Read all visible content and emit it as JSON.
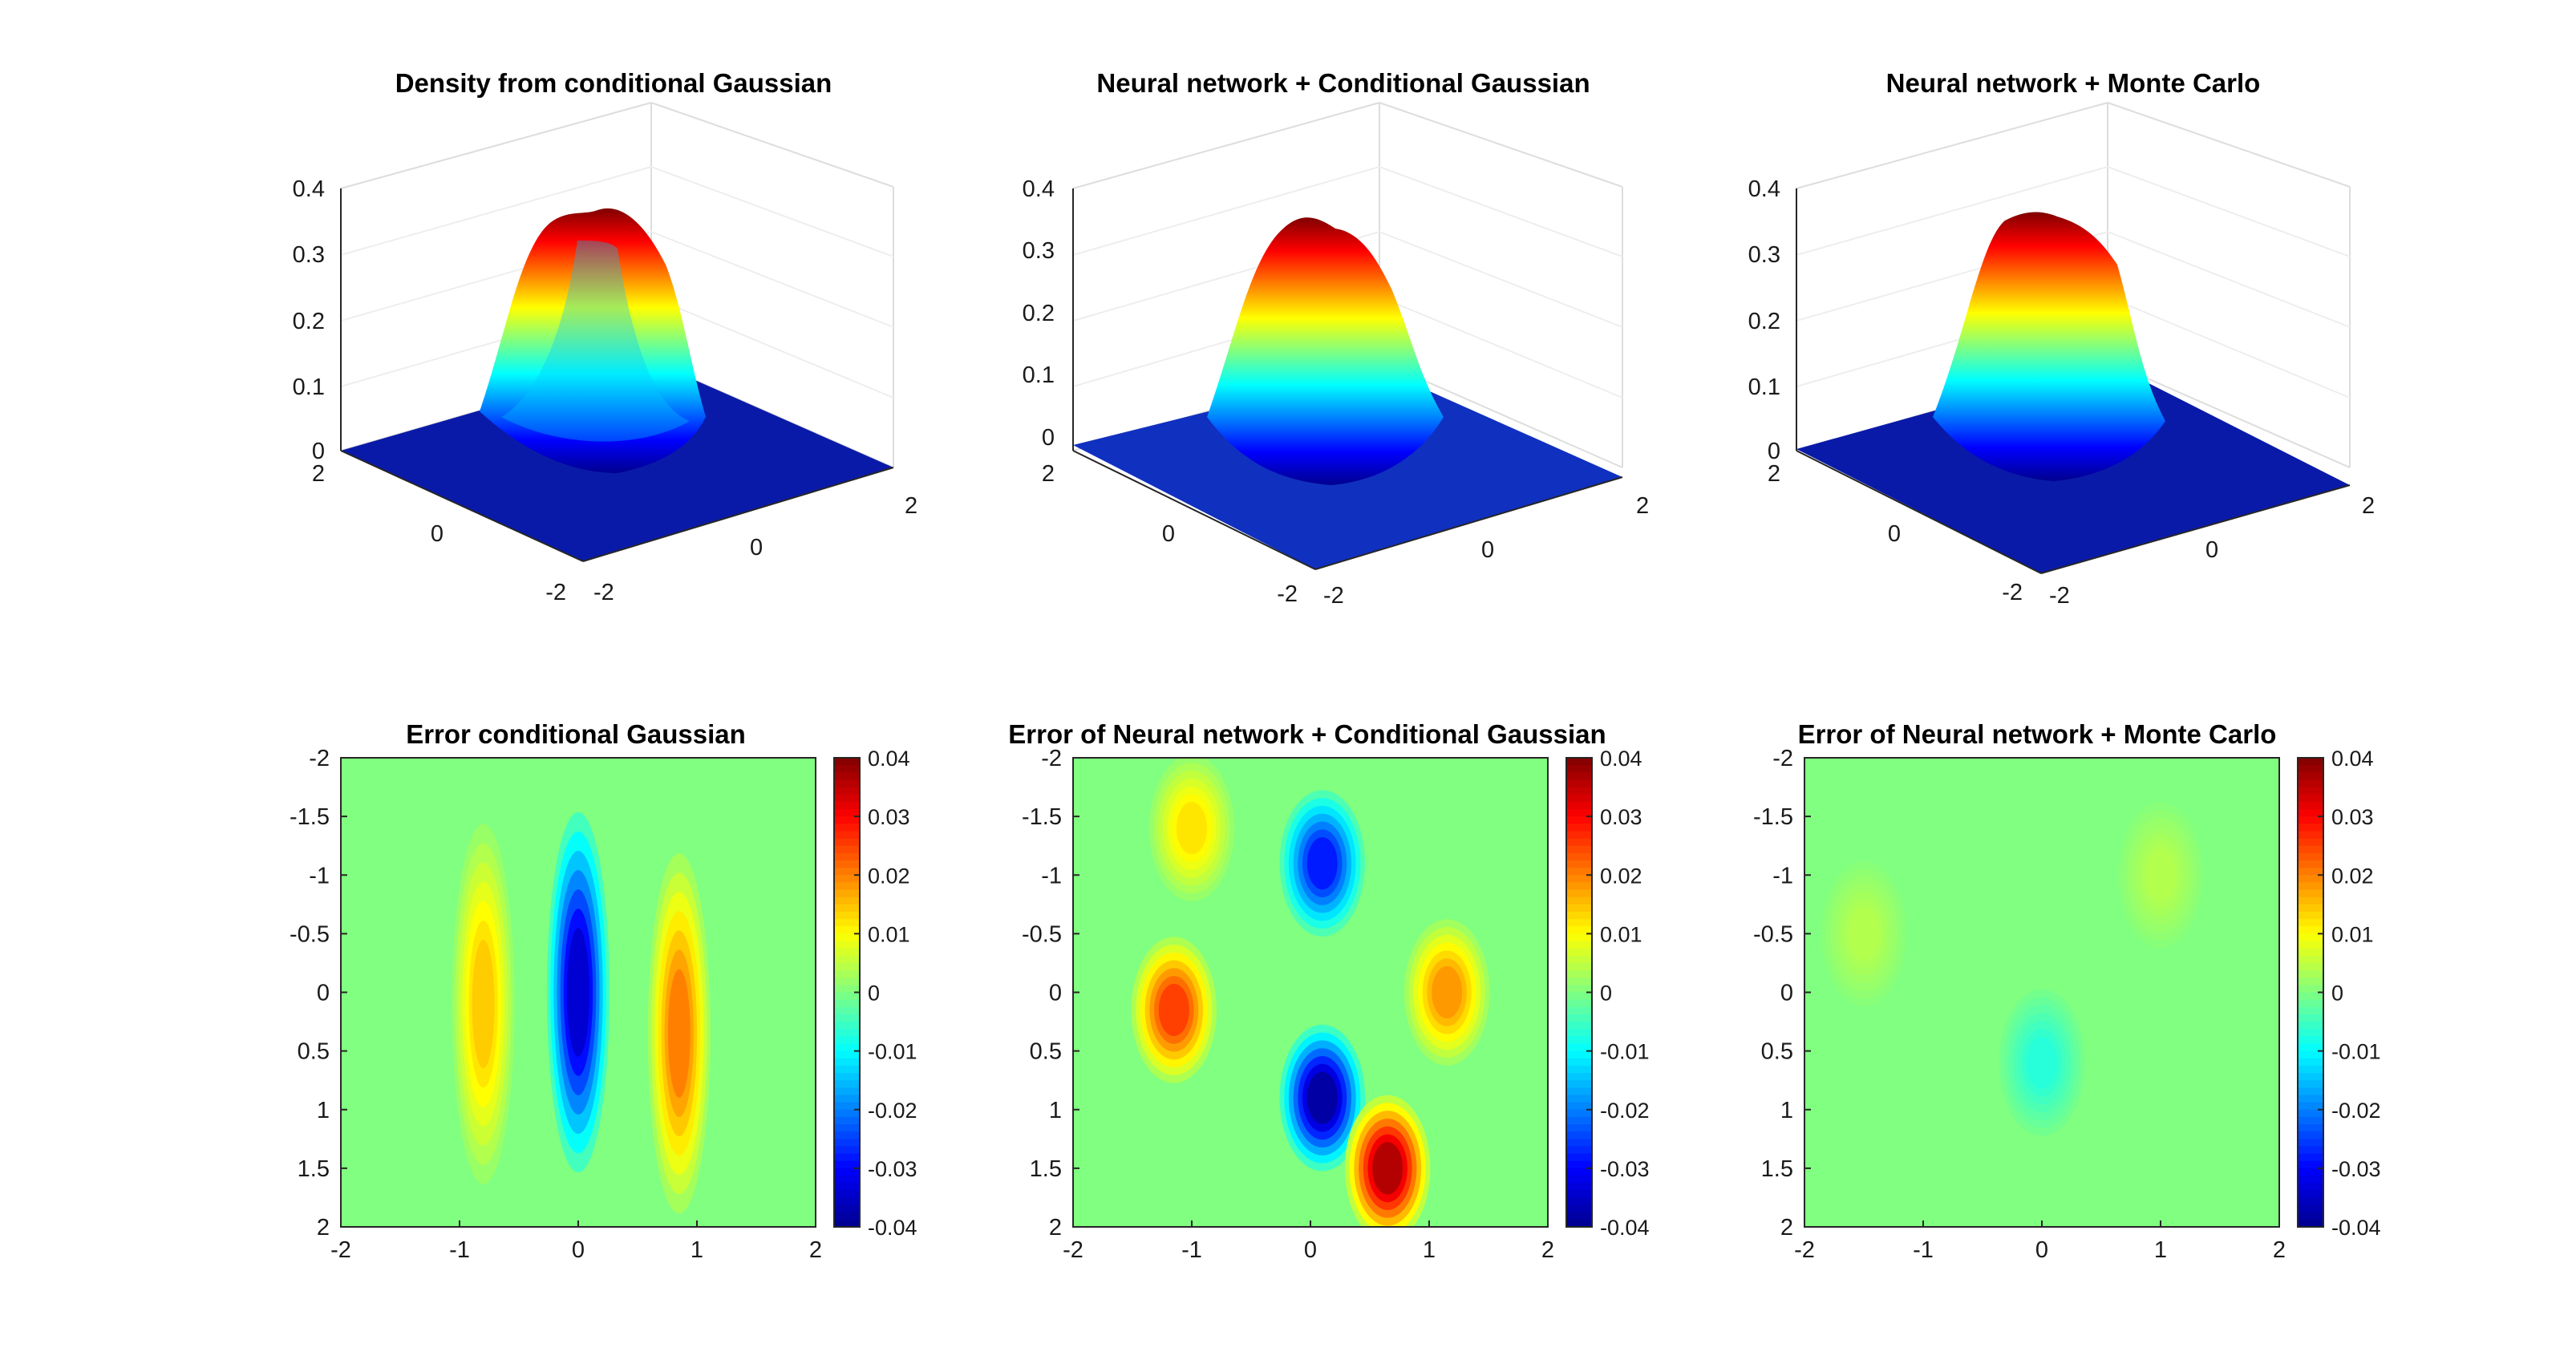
{
  "colormap": [
    "#00008f",
    "#0000ff",
    "#0080ff",
    "#00ffff",
    "#80ff80",
    "#ffff00",
    "#ff8000",
    "#ff0000",
    "#800000"
  ],
  "chart_data": [
    {
      "type": "surface3d",
      "title": "Density from conditional Gaussian",
      "x_ticks": [
        "-2",
        "0",
        "2"
      ],
      "y_ticks": [
        "2",
        "0",
        "-2"
      ],
      "z_ticks": [
        "0",
        "0.1",
        "0.2",
        "0.3",
        "0.4"
      ],
      "zlim": [
        0,
        0.4
      ],
      "peak": 0.37,
      "grid": true
    },
    {
      "type": "surface3d",
      "title": "Neural network + Conditional Gaussian",
      "x_ticks": [
        "-2",
        "0",
        "2"
      ],
      "y_ticks": [
        "2",
        "0",
        "-2"
      ],
      "z_ticks": [
        "0",
        "0.1",
        "0.2",
        "0.3",
        "0.4"
      ],
      "zlim": [
        0,
        0.4
      ],
      "peak": 0.36,
      "grid": true
    },
    {
      "type": "surface3d",
      "title": "Neural network + Monte Carlo",
      "x_ticks": [
        "-2",
        "0",
        "2"
      ],
      "y_ticks": [
        "2",
        "0",
        "-2"
      ],
      "z_ticks": [
        "0",
        "0.1",
        "0.2",
        "0.3",
        "0.4"
      ],
      "zlim": [
        0,
        0.4
      ],
      "peak": 0.37,
      "grid": true
    },
    {
      "type": "heatmap",
      "title": "Error conditional Gaussian",
      "x_ticks": [
        "-2",
        "-1",
        "0",
        "1",
        "2"
      ],
      "y_ticks": [
        "-2",
        "-1.5",
        "-1",
        "-0.5",
        "0",
        "0.5",
        "1",
        "1.5",
        "2"
      ],
      "colorbar_ticks": [
        "0.04",
        "0.03",
        "0.02",
        "0.01",
        "0",
        "-0.01",
        "-0.02",
        "-0.03",
        "-0.04"
      ],
      "clim": [
        -0.04,
        0.04
      ],
      "features": [
        {
          "x": -0.8,
          "y": 0.1,
          "value": 0.014
        },
        {
          "x": 0.0,
          "y": 0.0,
          "value": -0.034
        },
        {
          "x": 0.85,
          "y": 0.35,
          "value": 0.02
        }
      ]
    },
    {
      "type": "heatmap",
      "title": "Error of Neural network + Conditional Gaussian",
      "x_ticks": [
        "-2",
        "-1",
        "0",
        "1",
        "2"
      ],
      "y_ticks": [
        "-2",
        "-1.5",
        "-1",
        "-0.5",
        "0",
        "0.5",
        "1",
        "1.5",
        "2"
      ],
      "colorbar_ticks": [
        "0.04",
        "0.03",
        "0.02",
        "0.01",
        "0",
        "-0.01",
        "-0.02",
        "-0.03",
        "-0.04"
      ],
      "clim": [
        -0.04,
        0.04
      ],
      "features": [
        {
          "x": -1.15,
          "y": 0.15,
          "value": 0.025
        },
        {
          "x": 0.1,
          "y": -1.1,
          "value": -0.028
        },
        {
          "x": 0.1,
          "y": 0.9,
          "value": -0.038
        },
        {
          "x": 1.15,
          "y": 0.0,
          "value": 0.018
        },
        {
          "x": 0.65,
          "y": 1.5,
          "value": 0.036
        },
        {
          "x": -1.0,
          "y": -1.4,
          "value": 0.012
        }
      ]
    },
    {
      "type": "heatmap",
      "title": "Error of Neural network + Monte Carlo",
      "x_ticks": [
        "-2",
        "-1",
        "0",
        "1",
        "2"
      ],
      "y_ticks": [
        "-2",
        "-1.5",
        "-1",
        "-0.5",
        "0",
        "0.5",
        "1",
        "1.5",
        "2"
      ],
      "colorbar_ticks": [
        "0.04",
        "0.03",
        "0.02",
        "0.01",
        "0",
        "-0.01",
        "-0.02",
        "-0.03",
        "-0.04"
      ],
      "clim": [
        -0.04,
        0.04
      ],
      "features": [
        {
          "x": 0.0,
          "y": 0.6,
          "value": -0.007
        },
        {
          "x": -1.5,
          "y": -0.5,
          "value": 0.004
        },
        {
          "x": 1.0,
          "y": -1.0,
          "value": 0.004
        }
      ]
    }
  ]
}
